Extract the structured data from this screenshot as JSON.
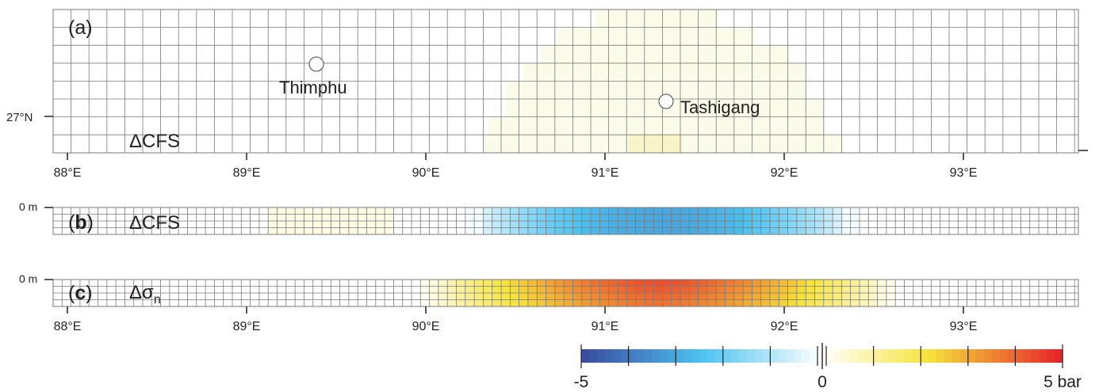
{
  "panels": {
    "a": {
      "label_open": "(",
      "label_letter": "a",
      "label_close": ")",
      "quantity": "ΔCFS",
      "cities": [
        {
          "name": "Thimphu",
          "lon": 89.42,
          "lat": 27.47
        },
        {
          "name": "Tashigang",
          "lon": 91.33,
          "lat": 27.07
        }
      ]
    },
    "b": {
      "label_open": "(",
      "label_letter": "b",
      "label_close": ")",
      "quantity": "ΔCFS",
      "depth_label": "0 m"
    },
    "c": {
      "label_open": "(",
      "label_letter": "c",
      "label_close": ")",
      "quantity_main": "Δσ",
      "quantity_sub": "n",
      "depth_label": "0 m"
    }
  },
  "axes": {
    "lon_ticks": [
      "88°E",
      "89°E",
      "90°E",
      "91°E",
      "92°E",
      "93°E"
    ],
    "lat_tick": "27°N"
  },
  "colorbar": {
    "min_label": "-5",
    "mid_label": "0",
    "max_label": "5 bar",
    "min": -5,
    "max": 5,
    "unit": "bar"
  },
  "colors": {
    "grid": "#7a7a7a",
    "negative_end": "#3b4ea2",
    "negative_mid": "#4ec3f0",
    "positive_mid": "#f5e33a",
    "positive_end": "#e8262a"
  }
}
